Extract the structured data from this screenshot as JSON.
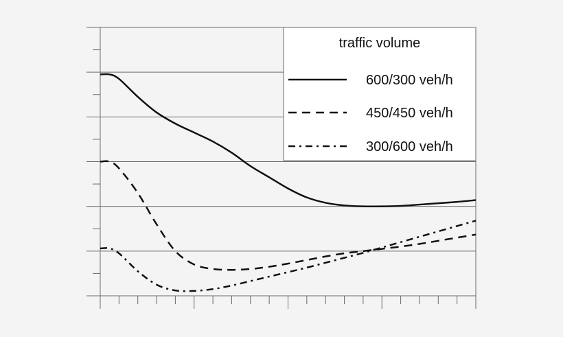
{
  "chart_data": {
    "type": "line",
    "title": "",
    "xlabel": "",
    "ylabel": "",
    "x_ticks_labeled": false,
    "y_ticks_labeled": false,
    "units_note": "No tick labels shown; values in normalized plot units (x: minor tick index 0-20, y: major gridline index 0-6 from bottom)",
    "xlim": [
      0,
      20
    ],
    "ylim": [
      0,
      6
    ],
    "grid": {
      "horizontal": true,
      "vertical": false
    },
    "legend": {
      "title": "traffic volume",
      "position": "upper right",
      "entries": [
        "600/300 veh/h",
        "450/450 veh/h",
        "300/600 veh/h"
      ]
    },
    "series": [
      {
        "name": "600/300 veh/h",
        "style": "solid",
        "x": [
          0,
          0.5,
          1,
          2,
          3,
          4,
          5,
          6,
          7,
          8,
          9,
          10,
          11,
          12,
          13,
          14,
          15,
          16,
          17,
          18,
          19,
          20
        ],
        "y": [
          4.95,
          4.95,
          4.85,
          4.45,
          4.1,
          3.85,
          3.65,
          3.45,
          3.2,
          2.9,
          2.65,
          2.4,
          2.2,
          2.08,
          2.02,
          2.0,
          2.0,
          2.01,
          2.04,
          2.07,
          2.1,
          2.14
        ]
      },
      {
        "name": "450/450 veh/h",
        "style": "dashed",
        "x": [
          0,
          0.5,
          1,
          2,
          3,
          4,
          5,
          6,
          7,
          8,
          9,
          10,
          11,
          12,
          13,
          14,
          15,
          16,
          17,
          18,
          19,
          20
        ],
        "y": [
          3.0,
          3.0,
          2.85,
          2.3,
          1.6,
          1.0,
          0.7,
          0.6,
          0.58,
          0.6,
          0.65,
          0.72,
          0.8,
          0.88,
          0.95,
          1.0,
          1.05,
          1.1,
          1.16,
          1.23,
          1.3,
          1.37
        ]
      },
      {
        "name": "300/600 veh/h",
        "style": "dash-dot",
        "x": [
          0,
          0.5,
          1,
          2,
          3,
          4,
          5,
          6,
          7,
          8,
          9,
          10,
          11,
          12,
          13,
          14,
          15,
          16,
          17,
          18,
          19,
          20
        ],
        "y": [
          1.06,
          1.06,
          0.95,
          0.55,
          0.25,
          0.12,
          0.11,
          0.15,
          0.23,
          0.33,
          0.43,
          0.53,
          0.63,
          0.74,
          0.85,
          0.96,
          1.08,
          1.2,
          1.32,
          1.44,
          1.56,
          1.68
        ]
      }
    ]
  },
  "legend": {
    "title": "traffic volume",
    "items": [
      {
        "label": "600/300 veh/h",
        "dash": ""
      },
      {
        "label": "450/450 veh/h",
        "dash": "12,8"
      },
      {
        "label": "300/600 veh/h",
        "dash": "10,6,3,6"
      }
    ]
  },
  "colors": {
    "background": "#f4f4f4",
    "grid": "#6a6a6a",
    "line": "#111111",
    "legend_bg": "#ffffff"
  }
}
